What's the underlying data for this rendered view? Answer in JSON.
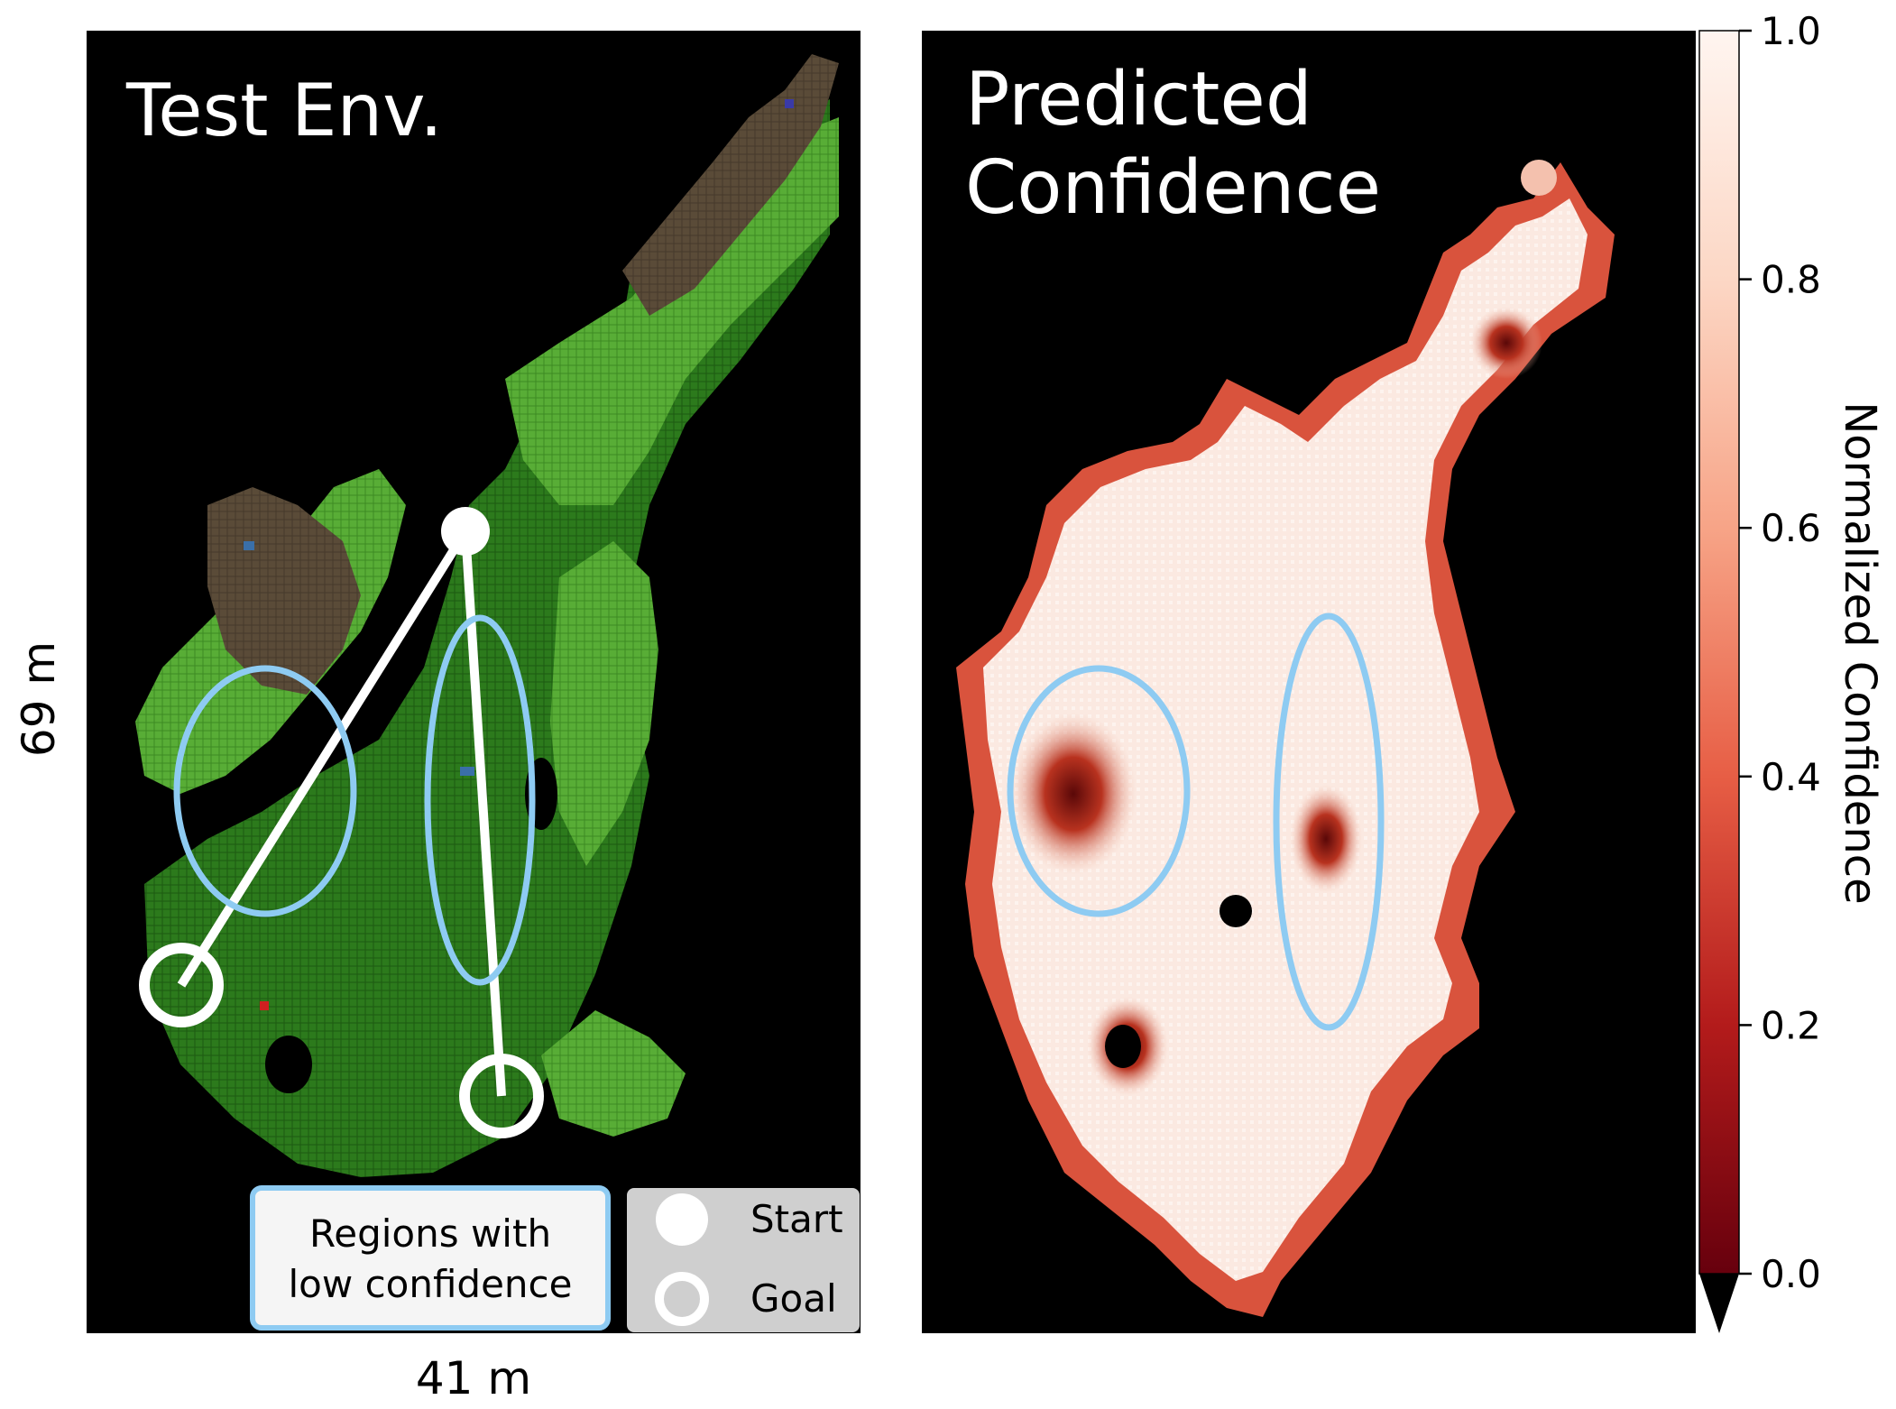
{
  "left_panel": {
    "title": "Test Env.",
    "width_label": "41 m",
    "height_label": "69 m"
  },
  "right_panel": {
    "title_line1": "Predicted",
    "title_line2": "Confidence"
  },
  "legend": {
    "regions_line1": "Regions with",
    "regions_line2": "low confidence",
    "start_label": "Start",
    "goal_label": "Goal"
  },
  "colorbar": {
    "label": "Normalized Confidence",
    "ticks": [
      "1.0",
      "0.8",
      "0.6",
      "0.4",
      "0.2",
      "0.0"
    ]
  },
  "colors": {
    "background": "#000000",
    "grass_light": "#5fb23a",
    "grass_dark": "#2f7d1e",
    "soil": "#5a4b38",
    "water": "#3a6fa8",
    "highlight_ellipse": "#8ecbf2",
    "path": "#ffffff",
    "conf_high": "#fdf0ea",
    "conf_mid": "#e8826a",
    "conf_low": "#6b0b0b"
  }
}
